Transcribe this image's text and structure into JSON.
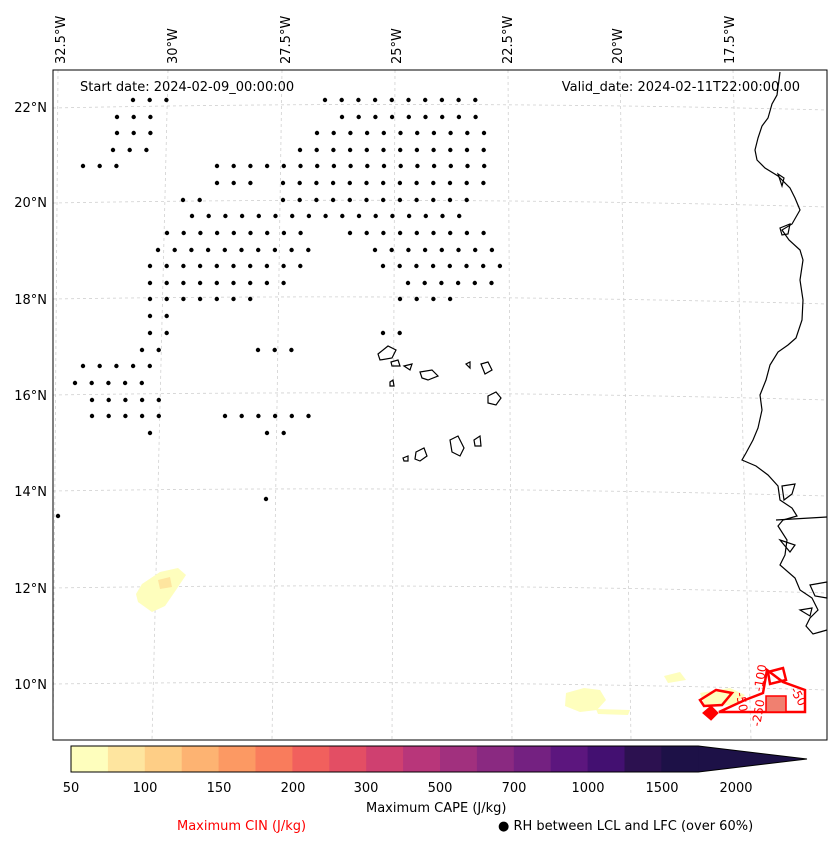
{
  "header": {
    "start_date": "Start date: 2024-02-09_00:00:00",
    "valid_date": "Valid_date: 2024-02-11T22:00:00.00"
  },
  "lon_labels": [
    "32.5°W",
    "30°W",
    "27.5°W",
    "25°W",
    "22.5°W",
    "20°W",
    "17.5°W"
  ],
  "lat_labels": [
    "22°N",
    "20°N",
    "18°N",
    "16°N",
    "14°N",
    "12°N",
    "10°N"
  ],
  "colorbar": {
    "title": "Maximum CAPE (J/kg)",
    "ticks": [
      "50",
      "100",
      "150",
      "200",
      "300",
      "500",
      "700",
      "1000",
      "1500",
      "2000"
    ],
    "colors": [
      "#fefebd",
      "#fee59f",
      "#fece86",
      "#fdb372",
      "#fc9963",
      "#f97c5c",
      "#f1605d",
      "#e34e64",
      "#cf4070",
      "#b8367a",
      "#a1307e",
      "#8a2981",
      "#742181",
      "#5c167e",
      "#431071",
      "#2c1150",
      "#1d1147"
    ]
  },
  "legend": {
    "cin_label": "Maximum CIN (J/kg)",
    "rh_marker": "●",
    "rh_label": "RH between LCL and LFC (over 60%)"
  },
  "contour_labels": [
    "-50",
    "-100",
    "-50",
    "-250"
  ],
  "colors": {
    "cin": "#ff0000",
    "coast": "#000000",
    "grid": "#cccccc"
  }
}
